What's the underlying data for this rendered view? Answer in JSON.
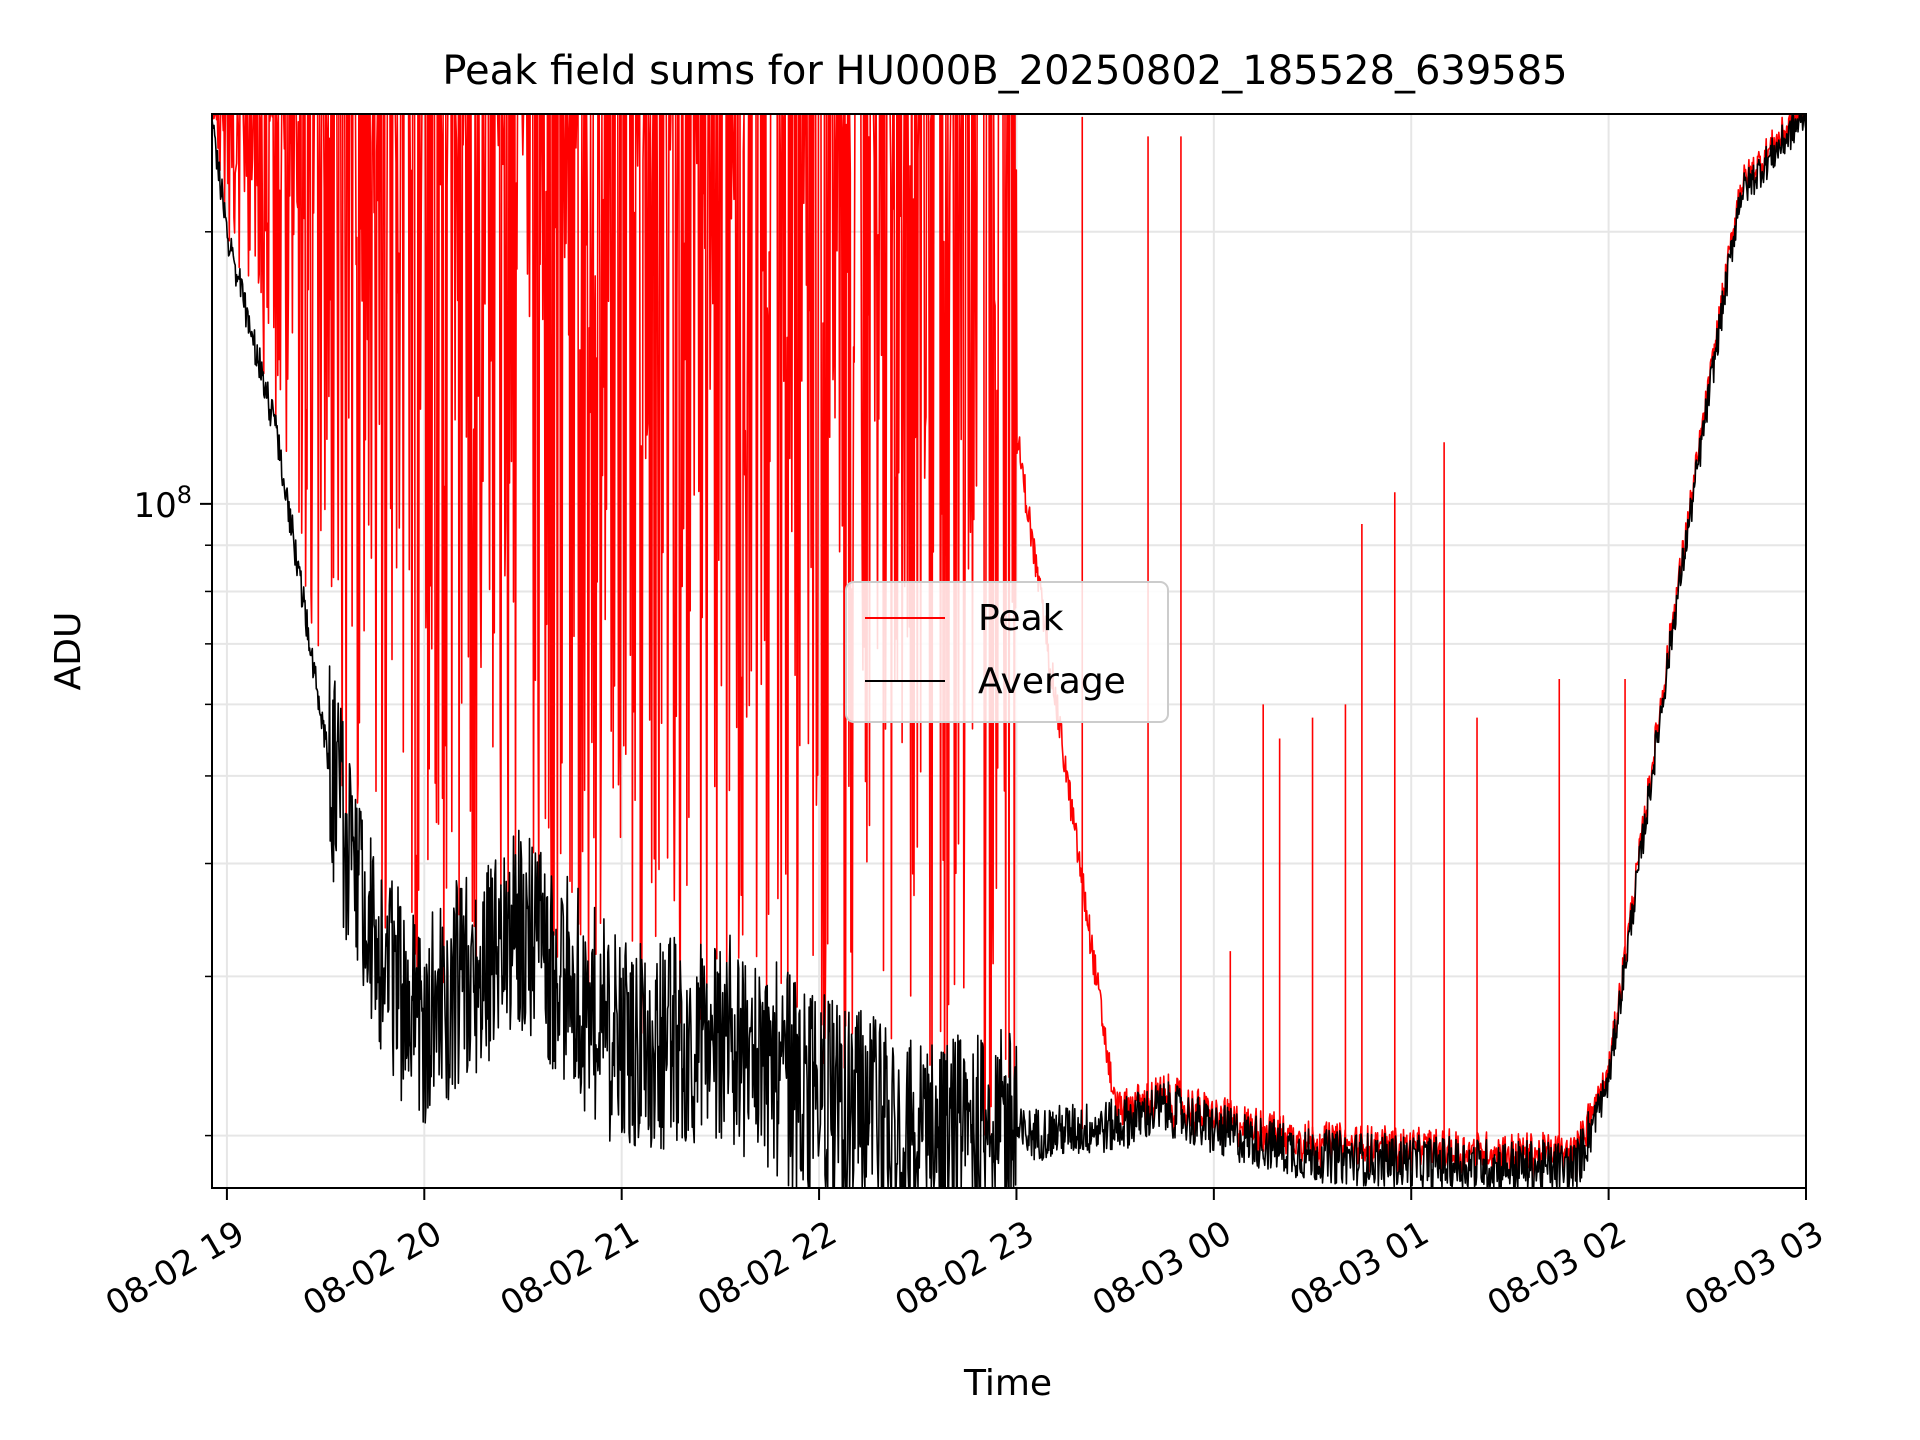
{
  "chart_data": {
    "type": "line",
    "title": "Peak field sums for HU000B_20250802_185528_639585",
    "xlabel": "Time",
    "ylabel": "ADU",
    "y_scale": "log",
    "y_major_tick_label": {
      "base": "10",
      "exponent": "8",
      "value": 100000000
    },
    "x_range": [
      "2025-08-02 18:55:28",
      "2025-08-03 03:00:00"
    ],
    "y_range": [
      17500000,
      270000000
    ],
    "x_ticks": [
      {
        "time": "2025-08-02 19:00",
        "label": "08-02 19"
      },
      {
        "time": "2025-08-02 20:00",
        "label": "08-02 20"
      },
      {
        "time": "2025-08-02 21:00",
        "label": "08-02 21"
      },
      {
        "time": "2025-08-02 22:00",
        "label": "08-02 22"
      },
      {
        "time": "2025-08-02 23:00",
        "label": "08-02 23"
      },
      {
        "time": "2025-08-03 00:00",
        "label": "08-03 00"
      },
      {
        "time": "2025-08-03 01:00",
        "label": "08-03 01"
      },
      {
        "time": "2025-08-03 02:00",
        "label": "08-03 02"
      },
      {
        "time": "2025-08-03 03:00",
        "label": "08-03 03"
      }
    ],
    "grid": true,
    "legend_position": "center",
    "series": [
      {
        "name": "Peak",
        "color": "#ff0000",
        "description_points": "Peak values oscillate heavily between the average baseline and the saturation level (~2.7e8) until ~22:40, then sparse spikes",
        "points": [
          [
            "2025-08-02 18:55",
            270000000
          ],
          [
            "2025-08-02 19:00",
            265000000
          ],
          [
            "2025-08-02 19:30",
            270000000
          ],
          [
            "2025-08-02 20:00",
            270000000
          ],
          [
            "2025-08-02 20:30",
            270000000
          ],
          [
            "2025-08-02 21:00",
            270000000
          ],
          [
            "2025-08-02 21:30",
            270000000
          ],
          [
            "2025-08-02 22:00",
            270000000
          ],
          [
            "2025-08-02 22:30",
            260000000
          ],
          [
            "2025-08-02 23:00",
            120000000
          ],
          [
            "2025-08-02 23:30",
            21500000
          ],
          [
            "2025-08-03 00:00",
            20000000
          ],
          [
            "2025-08-03 00:30",
            19200000
          ],
          [
            "2025-08-03 01:00",
            18800000
          ],
          [
            "2025-08-03 01:30",
            18600000
          ],
          [
            "2025-08-03 01:50",
            18700000
          ],
          [
            "2025-08-03 02:00",
            24000000
          ],
          [
            "2025-08-03 02:20",
            80000000
          ],
          [
            "2025-08-03 02:40",
            225000000
          ],
          [
            "2025-08-03 03:00",
            270000000
          ]
        ]
      },
      {
        "name": "Average",
        "color": "#000000",
        "points": [
          [
            "2025-08-02 18:55",
            270000000
          ],
          [
            "2025-08-02 19:00",
            200000000
          ],
          [
            "2025-08-02 19:15",
            120000000
          ],
          [
            "2025-08-02 19:30",
            55000000
          ],
          [
            "2025-08-02 19:45",
            31000000
          ],
          [
            "2025-08-02 20:00",
            27000000
          ],
          [
            "2025-08-02 20:30",
            34000000
          ],
          [
            "2025-08-02 21:00",
            25000000
          ],
          [
            "2025-08-02 21:30",
            26000000
          ],
          [
            "2025-08-02 22:00",
            22000000
          ],
          [
            "2025-08-02 22:30",
            19500000
          ],
          [
            "2025-08-02 23:00",
            20000000
          ],
          [
            "2025-08-02 23:30",
            20500000
          ],
          [
            "2025-08-02 23:45",
            21500000
          ],
          [
            "2025-08-03 00:00",
            20300000
          ],
          [
            "2025-08-03 00:30",
            19000000
          ],
          [
            "2025-08-03 01:00",
            18700000
          ],
          [
            "2025-08-03 01:30",
            18500000
          ],
          [
            "2025-08-03 01:50",
            18400000
          ],
          [
            "2025-08-03 02:00",
            23000000
          ],
          [
            "2025-08-03 02:20",
            75000000
          ],
          [
            "2025-08-03 02:40",
            220000000
          ],
          [
            "2025-08-03 03:00",
            270000000
          ]
        ]
      }
    ],
    "annotated_spikes_peak": [
      [
        "2025-08-02 23:20",
        268000000
      ],
      [
        "2025-08-02 23:40",
        255000000
      ],
      [
        "2025-08-02 23:50",
        255000000
      ],
      [
        "2025-08-03 00:05",
        32000000
      ],
      [
        "2025-08-03 00:15",
        60000000
      ],
      [
        "2025-08-03 00:20",
        55000000
      ],
      [
        "2025-08-03 00:30",
        58000000
      ],
      [
        "2025-08-03 00:40",
        60000000
      ],
      [
        "2025-08-03 00:45",
        95000000
      ],
      [
        "2025-08-03 00:55",
        103000000
      ],
      [
        "2025-08-03 01:10",
        117000000
      ],
      [
        "2025-08-03 01:20",
        58000000
      ],
      [
        "2025-08-03 01:45",
        64000000
      ],
      [
        "2025-08-03 02:05",
        64000000
      ]
    ]
  }
}
